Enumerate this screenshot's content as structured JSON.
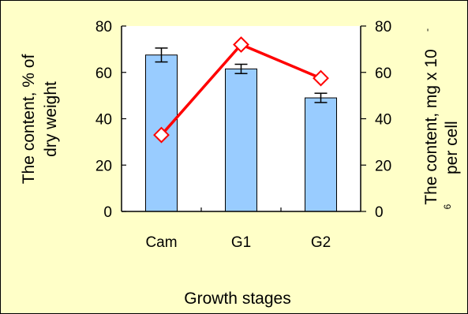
{
  "chart_data": {
    "type": "bar",
    "categories": [
      "Cam",
      "G1",
      "G2"
    ],
    "series": [
      {
        "kind": "bar",
        "axis": "left",
        "values": [
          67.5,
          61.5,
          49.0
        ],
        "errors": [
          3.0,
          2.0,
          2.0
        ],
        "color": "#99ccff"
      },
      {
        "kind": "line",
        "axis": "right",
        "values": [
          33,
          72,
          57.5
        ],
        "color": "#ff0000"
      }
    ],
    "xlabel": "Growth stages",
    "ylabel_left": [
      "The content, % of",
      "dry weight"
    ],
    "ylabel_right": [
      "The content, mg x 10",
      "-",
      "6",
      "per cell"
    ],
    "ylim_left": [
      0,
      80
    ],
    "ylim_right": [
      0,
      80
    ],
    "yticks_left": [
      "0",
      "20",
      "40",
      "60",
      "80"
    ],
    "yticks_right": [
      "0",
      "20",
      "40",
      "60",
      "80"
    ],
    "grid": false,
    "background": "#ffffcc",
    "plot_background": "#ffffff"
  }
}
